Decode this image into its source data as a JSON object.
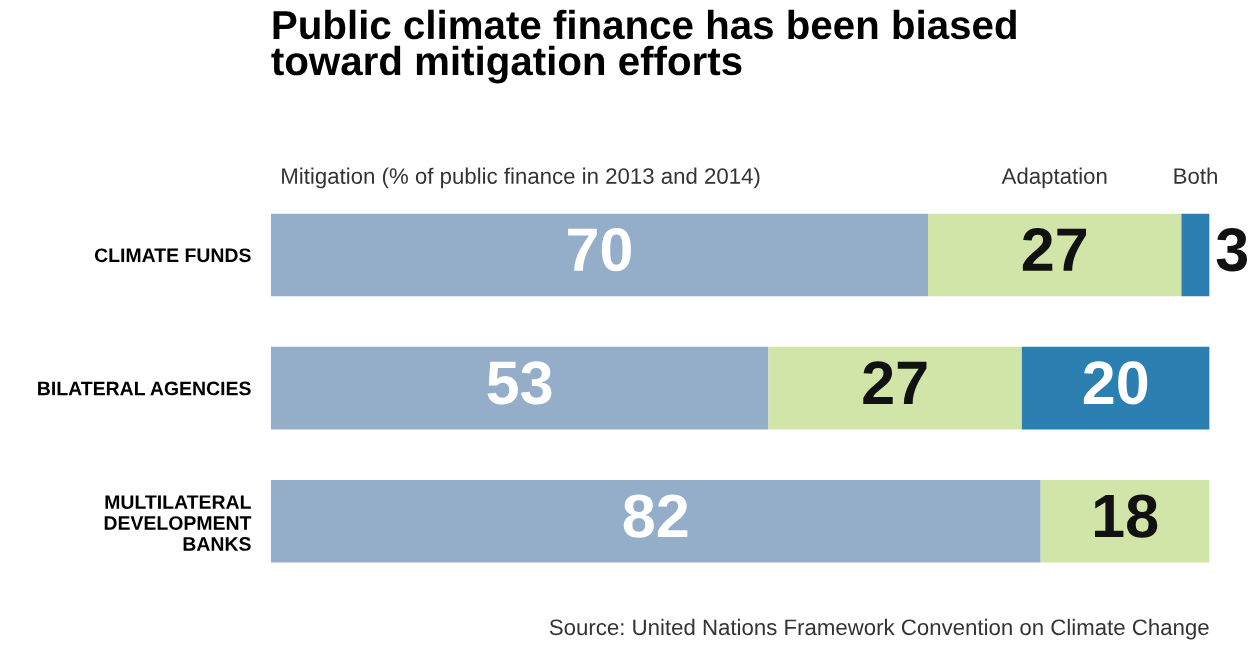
{
  "chart_data": {
    "type": "bar",
    "orientation": "horizontal",
    "stacked": true,
    "data_labels": true,
    "grid": false,
    "title": "Public climate finance has been biased\ntoward mitigation efforts",
    "categories": [
      "CLIMATE FUNDS",
      "BILATERAL AGENCIES",
      "MULTILATERAL\nDEVELOPMENT\nBANKS"
    ],
    "series": [
      {
        "name": "Mitigation (% of public finance in 2013 and 2014)",
        "color": "#94aec9",
        "values": [
          70,
          53,
          82
        ]
      },
      {
        "name": "Adaptation",
        "color": "#d2e5a8",
        "values": [
          27,
          27,
          18
        ]
      },
      {
        "name": "Both",
        "color": "#2b7fb1",
        "values": [
          3,
          20,
          null
        ]
      }
    ],
    "annotations": [
      "Source: United Nations Framework Convention on Climate Change"
    ]
  }
}
